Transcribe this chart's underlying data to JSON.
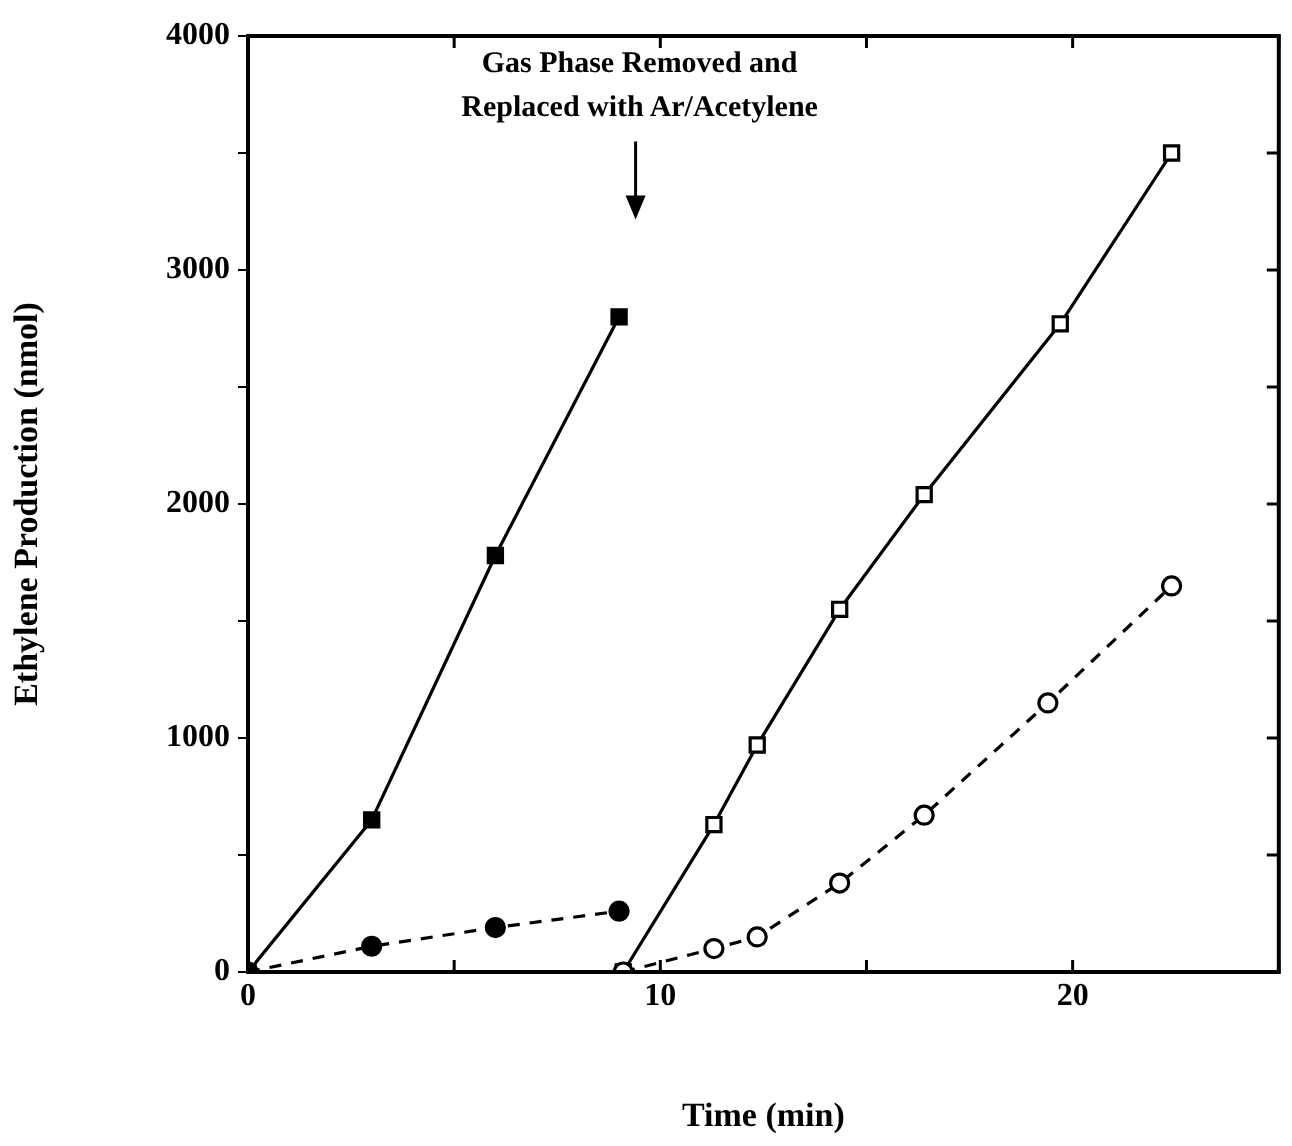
{
  "chart_data": {
    "type": "line",
    "xlabel": "Time (min)",
    "ylabel": "Ethylene Production (nmol)",
    "xlim": [
      0,
      25
    ],
    "xticks": [
      0,
      {
        "value": 5,
        "label": null
      },
      10,
      {
        "value": 15,
        "label": null
      },
      20,
      {
        "value": 25,
        "label": null
      }
    ],
    "ylim": [
      0,
      4000
    ],
    "yticks": [
      0,
      {
        "value": 500,
        "label": null
      },
      1000,
      {
        "value": 1500,
        "label": null
      },
      2000,
      {
        "value": 2500,
        "label": null
      },
      3000,
      {
        "value": 3500,
        "label": null
      },
      4000
    ],
    "grid": false,
    "legend": false,
    "series": [
      {
        "color": "#000000",
        "marker": "square",
        "line_style": "solid",
        "x": [
          0,
          3,
          6,
          9
        ],
        "values": [
          0,
          650,
          1780,
          2800
        ]
      },
      {
        "color": "#000000",
        "marker": "circle",
        "line_style": "dashed",
        "x": [
          0,
          3,
          6,
          9
        ],
        "values": [
          0,
          110,
          190,
          260
        ]
      },
      {
        "color": "#000000",
        "marker": "square",
        "line_style": "solid",
        "x": [
          9.1,
          11.3,
          12.35,
          14.35,
          16.4,
          19.7,
          22.4
        ],
        "values": [
          0,
          630,
          970,
          1550,
          2040,
          2770,
          3500
        ]
      },
      {
        "color": "#000000",
        "marker": "circle",
        "line_style": "dashed",
        "x": [
          9.1,
          11.3,
          12.35,
          14.35,
          16.4,
          19.4,
          22.4
        ],
        "values": [
          0,
          100,
          150,
          380,
          670,
          1150,
          1650
        ]
      }
    ],
    "annotations": [
      {
        "text": "Gas Phase Removed and\nReplaced with Ar/Acetylene",
        "x": 9.4,
        "y": 3250
      }
    ]
  }
}
